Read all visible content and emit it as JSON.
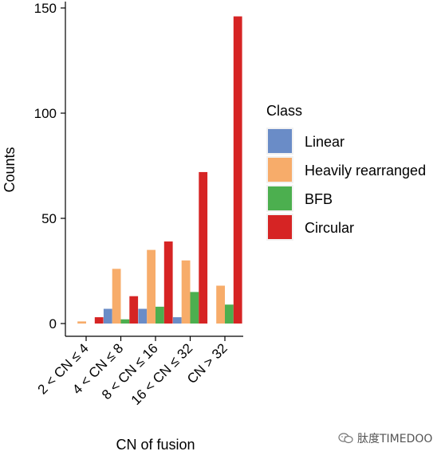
{
  "chart_data": {
    "type": "bar",
    "title": "",
    "xlabel": "CN of fusion",
    "ylabel": "Counts",
    "ylim": [
      0,
      150
    ],
    "yticks": [
      0,
      50,
      100,
      150
    ],
    "categories": [
      "2 < CN ≤ 4",
      "4 < CN ≤ 8",
      "8 < CN ≤ 16",
      "16 < CN ≤ 32",
      "CN > 32"
    ],
    "legend": {
      "title": "Class",
      "placement": "right"
    },
    "series": [
      {
        "name": "Linear",
        "color": "#6a8cc7",
        "values": [
          0,
          7,
          7,
          3,
          0
        ]
      },
      {
        "name": "Heavily rearranged",
        "color": "#f7ac6a",
        "values": [
          1,
          26,
          35,
          30,
          18
        ]
      },
      {
        "name": "BFB",
        "color": "#4caf4f",
        "values": [
          0,
          2,
          8,
          15,
          9
        ]
      },
      {
        "name": "Circular",
        "color": "#d62424",
        "values": [
          3,
          13,
          39,
          72,
          146
        ]
      }
    ]
  },
  "watermark": {
    "text": "肽度TIMEDOO",
    "icon": "wechat-icon"
  }
}
